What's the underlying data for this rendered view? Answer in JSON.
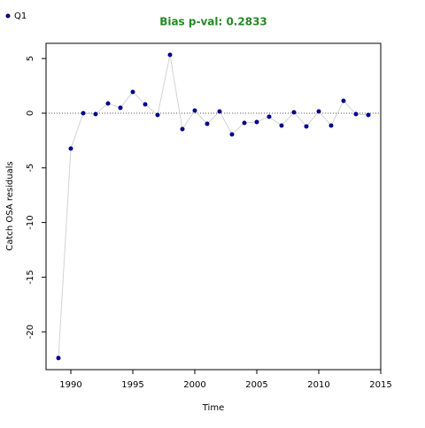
{
  "chart_data": {
    "type": "line",
    "title": "Bias p-val: 0.2833",
    "title_color": "#228B22",
    "x_label": "Time",
    "y_label": "Catch OSA residuals",
    "x": [
      1989,
      1990,
      1991,
      1992,
      1993,
      1994,
      1995,
      1996,
      1997,
      1998,
      1999,
      2000,
      2001,
      2002,
      2003,
      2004,
      2005,
      2006,
      2007,
      2008,
      2009,
      2010,
      2011,
      2012,
      2013,
      2014
    ],
    "series": [
      {
        "name": "Q1",
        "color": "#00008B",
        "line_color": "#d3d3d3",
        "values": [
          -22.4,
          -3.24,
          0.0,
          -0.08,
          0.89,
          0.49,
          1.94,
          0.81,
          -0.16,
          5.34,
          -1.46,
          0.24,
          -0.97,
          0.16,
          -1.94,
          -0.89,
          -0.81,
          -0.32,
          -1.13,
          0.08,
          -1.21,
          0.16,
          -1.13,
          1.13,
          -0.08,
          -0.16
        ]
      }
    ],
    "xlim": [
      1988,
      2015
    ],
    "ylim": [
      -23.46,
      6.39
    ],
    "xticks": [
      1990,
      1995,
      2000,
      2005,
      2010,
      2015
    ],
    "yticks": [
      -20,
      -15,
      -10,
      -5,
      0,
      5
    ],
    "hline": 0,
    "legend": "top-left"
  }
}
